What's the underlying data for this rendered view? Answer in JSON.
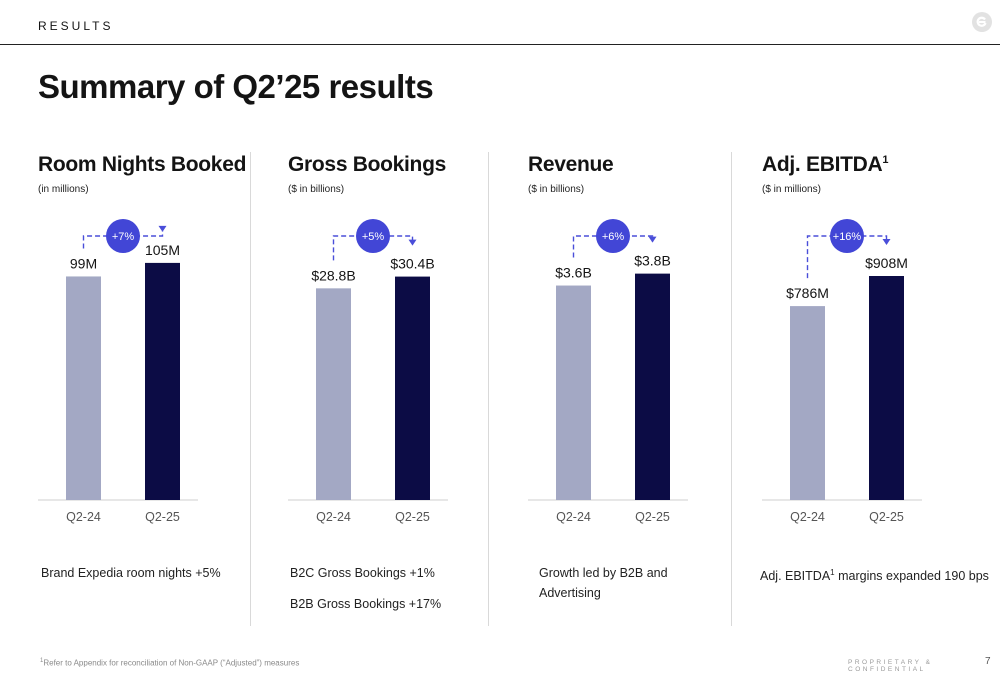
{
  "header": {
    "section_label": "RESULTS",
    "title": "Summary of Q2’25 results"
  },
  "colors": {
    "prior_bar": "#a3a8c4",
    "current_bar": "#0c0c45",
    "growth_bubble": "#4246d6",
    "arrow": "#4a4ed9",
    "logo": "#e2e2e2"
  },
  "chart_data": [
    {
      "type": "bar",
      "title": "Room Nights Booked",
      "subtitle": "(in millions)",
      "categories": [
        "Q2-24",
        "Q2-25"
      ],
      "values": [
        99,
        105
      ],
      "value_labels": [
        "99M",
        "105M"
      ],
      "growth": "+7%",
      "ylim": [
        0,
        124
      ]
    },
    {
      "type": "bar",
      "title": "Gross Bookings",
      "subtitle": "($ in billions)",
      "categories": [
        "Q2-24",
        "Q2-25"
      ],
      "values": [
        28.8,
        30.4
      ],
      "value_labels": [
        "$28.8B",
        "$30.4B"
      ],
      "growth": "+5%",
      "ylim": [
        0,
        38.1
      ]
    },
    {
      "type": "bar",
      "title": "Revenue",
      "subtitle": "($ in billions)",
      "categories": [
        "Q2-24",
        "Q2-25"
      ],
      "values": [
        3.6,
        3.8
      ],
      "value_labels": [
        "$3.6B",
        "$3.8B"
      ],
      "growth": "+6%",
      "ylim": [
        0,
        4.7
      ]
    },
    {
      "type": "bar",
      "title": "Adj. EBITDA",
      "title_sup": "1",
      "subtitle": "($ in millions)",
      "categories": [
        "Q2-24",
        "Q2-25"
      ],
      "values": [
        786,
        908
      ],
      "value_labels": [
        "$786M",
        "$908M"
      ],
      "growth": "+16%",
      "ylim": [
        0,
        1135
      ]
    }
  ],
  "notes": {
    "room_nights": "Brand Expedia room nights +5%",
    "gross_bookings_b2c": "B2C Gross Bookings +1%",
    "gross_bookings_b2b": "B2B Gross Bookings +17%",
    "revenue": "Growth led by B2B and Advertising",
    "ebitda_prefix": "Adj. EBITDA",
    "ebitda_sup": "1",
    "ebitda_suffix": " margins expanded 190 bps"
  },
  "footer": {
    "footnote_sup": "1",
    "footnote": "Refer to Appendix for reconciliation of Non-GAAP (“Adjusted”) measures",
    "confidential": "PROPRIETARY & CONFIDENTIAL",
    "page_number": "7"
  }
}
